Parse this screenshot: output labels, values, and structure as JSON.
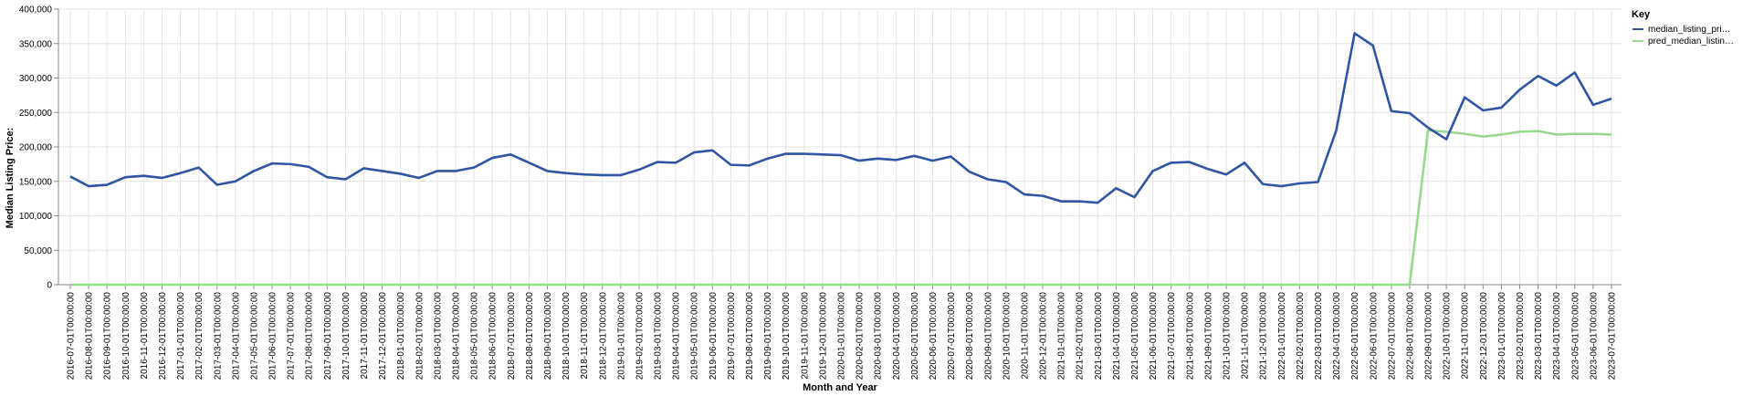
{
  "chart_data": {
    "type": "line",
    "xlabel": "Month and Year",
    "ylabel": "Median Listing Price:",
    "ylim": [
      0,
      400000
    ],
    "yticks": [
      "0",
      "50,000",
      "100,000",
      "150,000",
      "200,000",
      "250,000",
      "300,000",
      "350,000",
      "400,000"
    ],
    "grid": true,
    "legend": {
      "title": "Key",
      "position": "top-right"
    },
    "categories": [
      "2016-07-01T00:00:00",
      "2016-08-01T00:00:00",
      "2016-09-01T00:00:00",
      "2016-10-01T00:00:00",
      "2016-11-01T00:00:00",
      "2016-12-01T00:00:00",
      "2017-01-01T00:00:00",
      "2017-02-01T00:00:00",
      "2017-03-01T00:00:00",
      "2017-04-01T00:00:00",
      "2017-05-01T00:00:00",
      "2017-06-01T00:00:00",
      "2017-07-01T00:00:00",
      "2017-08-01T00:00:00",
      "2017-09-01T00:00:00",
      "2017-10-01T00:00:00",
      "2017-11-01T00:00:00",
      "2017-12-01T00:00:00",
      "2018-01-01T00:00:00",
      "2018-02-01T00:00:00",
      "2018-03-01T00:00:00",
      "2018-04-01T00:00:00",
      "2018-05-01T00:00:00",
      "2018-06-01T00:00:00",
      "2018-07-01T00:00:00",
      "2018-08-01T00:00:00",
      "2018-09-01T00:00:00",
      "2018-10-01T00:00:00",
      "2018-11-01T00:00:00",
      "2018-12-01T00:00:00",
      "2019-01-01T00:00:00",
      "2019-02-01T00:00:00",
      "2019-03-01T00:00:00",
      "2019-04-01T00:00:00",
      "2019-05-01T00:00:00",
      "2019-06-01T00:00:00",
      "2019-07-01T00:00:00",
      "2019-08-01T00:00:00",
      "2019-09-01T00:00:00",
      "2019-10-01T00:00:00",
      "2019-11-01T00:00:00",
      "2019-12-01T00:00:00",
      "2020-01-01T00:00:00",
      "2020-02-01T00:00:00",
      "2020-03-01T00:00:00",
      "2020-04-01T00:00:00",
      "2020-05-01T00:00:00",
      "2020-06-01T00:00:00",
      "2020-07-01T00:00:00",
      "2020-08-01T00:00:00",
      "2020-09-01T00:00:00",
      "2020-10-01T00:00:00",
      "2020-11-01T00:00:00",
      "2020-12-01T00:00:00",
      "2021-01-01T00:00:00",
      "2021-02-01T00:00:00",
      "2021-03-01T00:00:00",
      "2021-04-01T00:00:00",
      "2021-05-01T00:00:00",
      "2021-06-01T00:00:00",
      "2021-07-01T00:00:00",
      "2021-08-01T00:00:00",
      "2021-09-01T00:00:00",
      "2021-10-01T00:00:00",
      "2021-11-01T00:00:00",
      "2021-12-01T00:00:00",
      "2022-01-01T00:00:00",
      "2022-02-01T00:00:00",
      "2022-03-01T00:00:00",
      "2022-04-01T00:00:00",
      "2022-05-01T00:00:00",
      "2022-06-01T00:00:00",
      "2022-07-01T00:00:00",
      "2022-08-01T00:00:00",
      "2022-09-01T00:00:00",
      "2022-10-01T00:00:00",
      "2022-11-01T00:00:00",
      "2022-12-01T00:00:00",
      "2023-01-01T00:00:00",
      "2023-02-01T00:00:00",
      "2023-03-01T00:00:00",
      "2023-04-01T00:00:00",
      "2023-05-01T00:00:00",
      "2023-06-01T00:00:00",
      "2023-07-01T00:00:00"
    ],
    "series": [
      {
        "name": "median_listing_pri…",
        "color": "#2f55a4",
        "values": [
          157000,
          143000,
          145000,
          156000,
          158000,
          155000,
          162000,
          170000,
          145000,
          150000,
          165000,
          176000,
          175000,
          171000,
          156000,
          153000,
          169000,
          165000,
          161000,
          155000,
          165000,
          165000,
          170000,
          184000,
          189000,
          177000,
          165000,
          162000,
          160000,
          159000,
          159000,
          167000,
          178000,
          177000,
          192000,
          195000,
          174000,
          173000,
          183000,
          190000,
          190000,
          189000,
          188000,
          180000,
          183000,
          181000,
          187000,
          180000,
          186000,
          164000,
          153000,
          149000,
          131000,
          129000,
          121000,
          121000,
          119000,
          140000,
          127000,
          165000,
          177000,
          178000,
          168000,
          160000,
          177000,
          146000,
          143000,
          147000,
          149000,
          224000,
          365000,
          347000,
          252000,
          249000,
          228000,
          211000,
          272000,
          253000,
          257000,
          283000,
          303000,
          289000,
          308000,
          261000,
          270000
        ]
      },
      {
        "name": "pred_median_listin…",
        "color": "#98d98e",
        "values": [
          0,
          0,
          0,
          0,
          0,
          0,
          0,
          0,
          0,
          0,
          0,
          0,
          0,
          0,
          0,
          0,
          0,
          0,
          0,
          0,
          0,
          0,
          0,
          0,
          0,
          0,
          0,
          0,
          0,
          0,
          0,
          0,
          0,
          0,
          0,
          0,
          0,
          0,
          0,
          0,
          0,
          0,
          0,
          0,
          0,
          0,
          0,
          0,
          0,
          0,
          0,
          0,
          0,
          0,
          0,
          0,
          0,
          0,
          0,
          0,
          0,
          0,
          0,
          0,
          0,
          0,
          0,
          0,
          0,
          0,
          0,
          0,
          0,
          0,
          224000,
          222000,
          219000,
          215000,
          218000,
          222000,
          223000,
          218000,
          219000,
          219000,
          218000
        ]
      }
    ]
  }
}
